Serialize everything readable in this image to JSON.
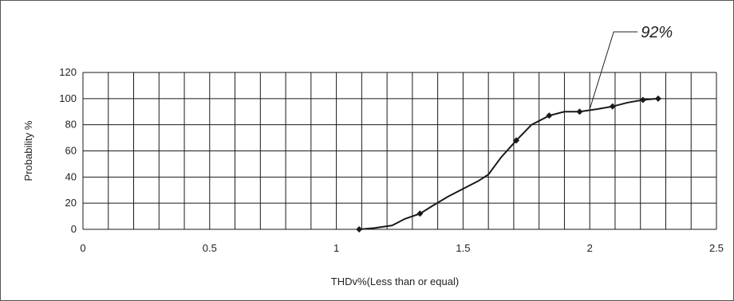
{
  "chart_data": {
    "type": "line",
    "xlabel": "THDv%(Less than or equal)",
    "ylabel": "Probability %",
    "xlim": [
      0,
      2.5
    ],
    "ylim": [
      0,
      120
    ],
    "x_ticks": [
      "0",
      "0.5",
      "1",
      "1.5",
      "2",
      "2.5"
    ],
    "y_ticks": [
      "0",
      "20",
      "40",
      "60",
      "80",
      "100",
      "120"
    ],
    "grid": true,
    "x": [
      1.09,
      1.15,
      1.22,
      1.27,
      1.33,
      1.38,
      1.44,
      1.5,
      1.56,
      1.6,
      1.65,
      1.71,
      1.77,
      1.84,
      1.9,
      1.96,
      2.03,
      2.09,
      2.15,
      2.21,
      2.27
    ],
    "y": [
      0,
      1,
      3,
      8,
      12,
      18,
      25,
      31,
      37,
      42,
      55,
      68,
      80,
      87,
      90,
      90,
      92,
      94,
      97,
      99,
      100
    ],
    "markers": [
      {
        "x": 1.09,
        "y": 0
      },
      {
        "x": 1.33,
        "y": 12
      },
      {
        "x": 1.71,
        "y": 68
      },
      {
        "x": 1.84,
        "y": 87
      },
      {
        "x": 1.96,
        "y": 90
      },
      {
        "x": 2.09,
        "y": 94
      },
      {
        "x": 2.21,
        "y": 99
      },
      {
        "x": 2.27,
        "y": 100
      }
    ],
    "annotation": {
      "text": "92%",
      "x": 2.0,
      "y": 92
    }
  },
  "colors": {
    "line": "#1a1a1a",
    "grid": "#1a1a1a",
    "frame": "#555555"
  }
}
